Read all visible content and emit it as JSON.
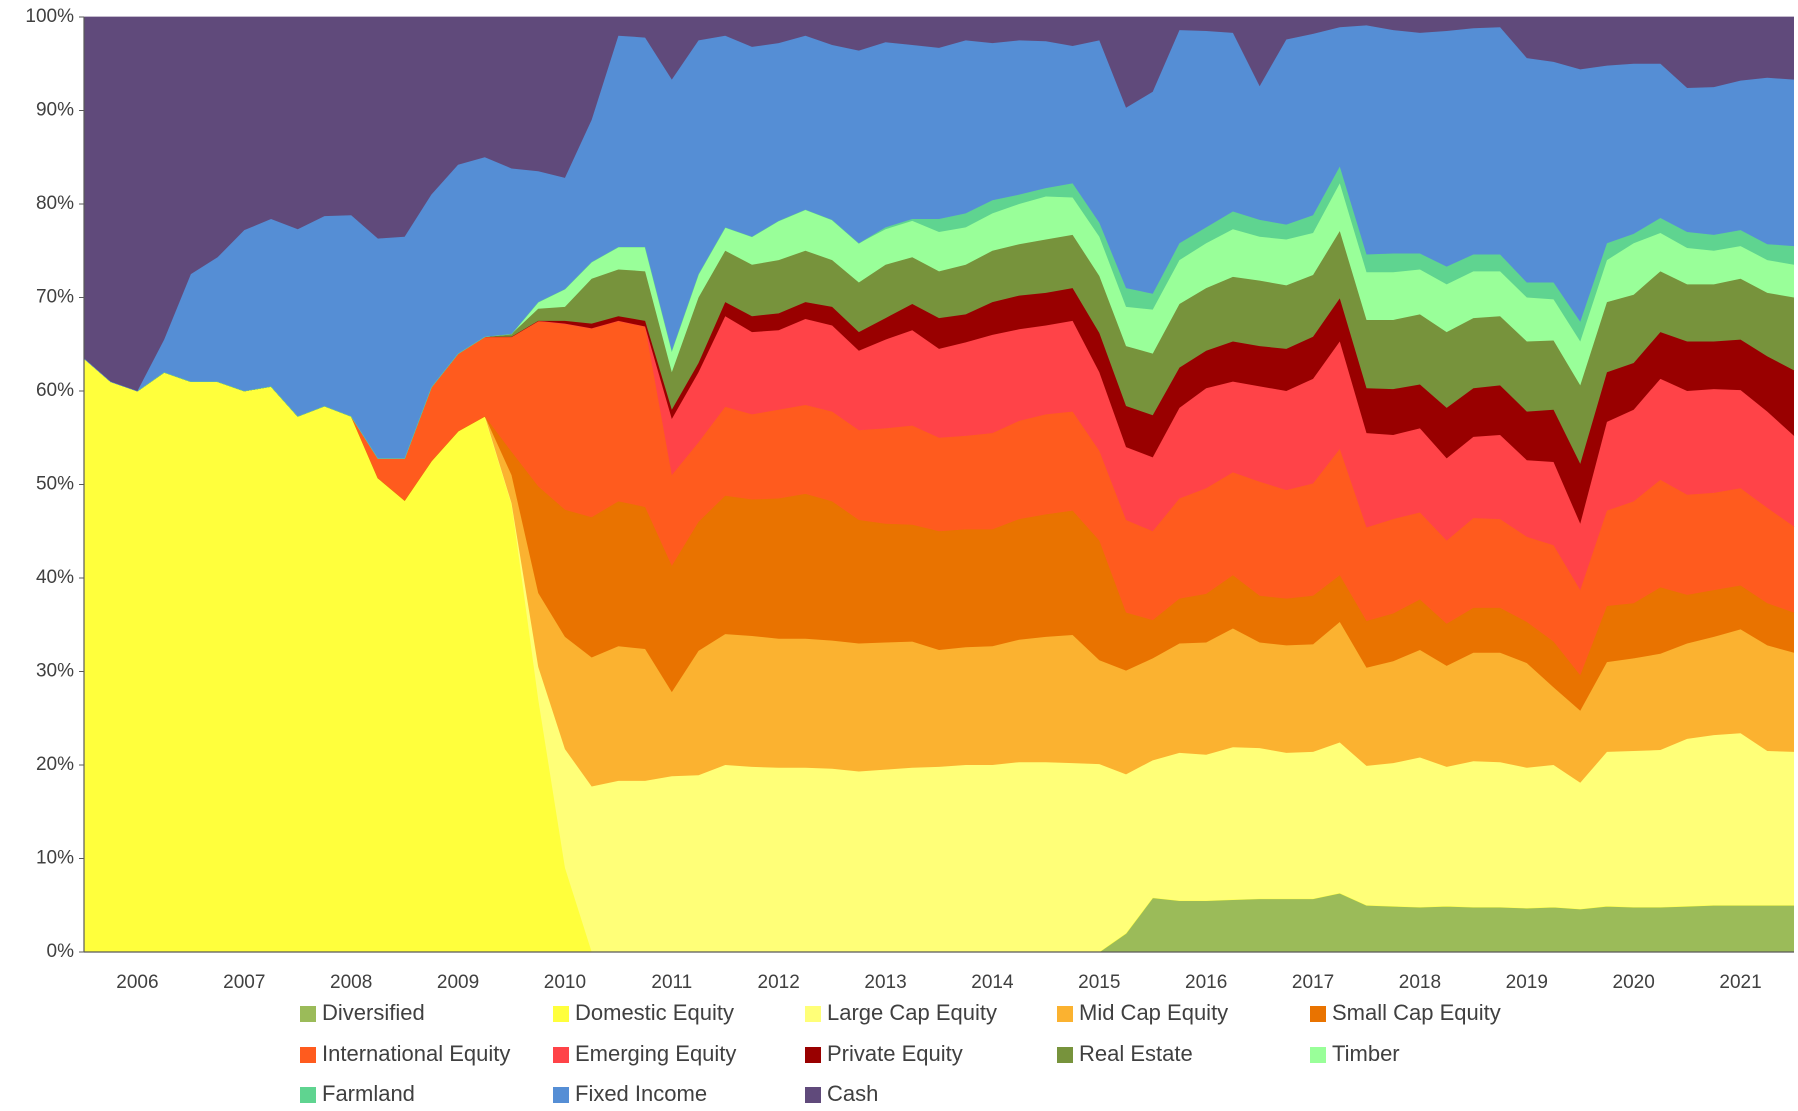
{
  "chart_data": {
    "type": "stacked_area",
    "categories": [
      null,
      null,
      "2006",
      null,
      null,
      null,
      "2007",
      null,
      null,
      null,
      "2008",
      null,
      null,
      null,
      "2009",
      null,
      null,
      null,
      "2010",
      null,
      null,
      null,
      "2011",
      null,
      null,
      null,
      "2012",
      null,
      null,
      null,
      "2013",
      null,
      null,
      null,
      "2014",
      null,
      null,
      null,
      "2015",
      null,
      null,
      null,
      "2016",
      null,
      null,
      null,
      "2017",
      null,
      null,
      null,
      "2018",
      null,
      null,
      null,
      "2019",
      null,
      null,
      null,
      "2020",
      null,
      null,
      null,
      "2021",
      null,
      null
    ],
    "ylim": [
      0,
      100
    ],
    "yticks": [
      {
        "value": 0,
        "label": "0%"
      },
      {
        "value": 10,
        "label": "10%"
      },
      {
        "value": 20,
        "label": "20%"
      },
      {
        "value": 30,
        "label": "30%"
      },
      {
        "value": 40,
        "label": "40%"
      },
      {
        "value": 50,
        "label": "50%"
      },
      {
        "value": 60,
        "label": "60%"
      },
      {
        "value": 70,
        "label": "70%"
      },
      {
        "value": 80,
        "label": "80%"
      },
      {
        "value": 90,
        "label": "90%"
      },
      {
        "value": 100,
        "label": "100%"
      }
    ],
    "grid": false,
    "legend": "bottom",
    "series": [
      {
        "name": "Diversified",
        "color": "#9bbb59",
        "values": [
          0,
          0,
          0,
          0,
          0,
          0,
          0,
          0,
          0,
          0,
          0,
          0,
          0,
          0,
          0,
          0,
          0,
          0,
          0,
          0,
          0,
          0,
          0,
          0,
          0,
          0,
          0,
          0,
          0,
          0,
          0,
          0,
          0,
          0,
          0,
          0,
          0,
          0,
          0,
          2,
          5.8,
          5.5,
          5.5,
          5.6,
          5.7,
          5.7,
          5.7,
          6.3,
          5,
          4.9,
          4.8,
          4.9,
          4.8,
          4.8,
          4.7,
          4.8,
          4.6,
          4.9,
          4.8,
          4.8,
          4.9,
          5,
          5,
          5,
          5
        ]
      },
      {
        "name": "Domestic Equity",
        "color": "#ffff3c",
        "values": [
          63.5,
          61,
          60,
          62,
          61,
          61,
          60,
          60.5,
          57.3,
          58.4,
          57.3,
          50.7,
          48.3,
          52.5,
          55.7,
          57.3,
          48,
          27,
          9,
          0,
          0,
          0,
          0,
          0,
          0,
          0,
          0,
          0,
          0,
          0,
          0,
          0,
          0,
          0,
          0,
          0,
          0,
          0,
          0,
          0,
          0,
          0,
          0,
          0,
          0,
          0,
          0,
          0,
          0,
          0,
          0,
          0,
          0,
          0,
          0,
          0,
          0,
          0,
          0,
          0,
          0,
          0,
          0,
          0,
          0
        ]
      },
      {
        "name": "Large Cap Equity",
        "color": "#ffff78",
        "values": [
          0,
          0,
          0,
          0,
          0,
          0,
          0,
          0,
          0,
          0,
          0,
          0,
          0,
          0,
          0,
          0,
          0,
          3.5,
          12.7,
          17.7,
          18.3,
          18.3,
          18.8,
          18.9,
          20,
          19.8,
          19.7,
          19.7,
          19.6,
          19.3,
          19.5,
          19.7,
          19.8,
          20,
          20,
          20.3,
          20.3,
          20.2,
          20.1,
          17,
          14.7,
          15.8,
          15.6,
          16.3,
          16.1,
          15.6,
          15.7,
          16.1,
          14.9,
          15.3,
          16,
          14.9,
          15.6,
          15.5,
          15,
          15.2,
          13.5,
          16.5,
          16.7,
          16.8,
          17.9,
          18.2,
          18.4,
          16.5,
          16.4
        ]
      },
      {
        "name": "Mid Cap Equity",
        "color": "#fbb230",
        "values": [
          0,
          0,
          0,
          0,
          0,
          0,
          0,
          0,
          0,
          0,
          0,
          0,
          0,
          0,
          0,
          0,
          3,
          7.9,
          12,
          13.8,
          14.4,
          14.1,
          9,
          13.3,
          14,
          14,
          13.8,
          13.8,
          13.7,
          13.7,
          13.6,
          13.5,
          12.5,
          12.6,
          12.7,
          13.1,
          13.4,
          13.7,
          11.1,
          11.1,
          10.9,
          11.7,
          12,
          12.7,
          11.3,
          11.5,
          11.5,
          12.9,
          10.5,
          10.9,
          11.5,
          10.8,
          11.6,
          11.7,
          11.2,
          8.3,
          7.7,
          9.6,
          9.9,
          10.3,
          10.2,
          10.5,
          11.1,
          11.3,
          10.6
        ]
      },
      {
        "name": "Small Cap Equity",
        "color": "#e97300",
        "values": [
          0,
          0,
          0,
          0,
          0,
          0,
          0,
          0,
          0,
          0,
          0,
          0,
          0,
          0,
          0,
          0,
          2.5,
          11.4,
          13.6,
          15,
          15.5,
          15.2,
          13.5,
          13.8,
          14.8,
          14.6,
          15,
          15.5,
          14.9,
          13.2,
          12.7,
          12.5,
          12.7,
          12.6,
          12.5,
          12.9,
          13.1,
          13.3,
          12.8,
          6.2,
          4.1,
          4.8,
          5.2,
          5.7,
          5,
          5,
          5.2,
          5,
          5,
          5.1,
          5.4,
          4.5,
          4.8,
          4.8,
          4.4,
          4.9,
          3.8,
          6,
          5.9,
          7.1,
          5.2,
          5,
          4.7,
          4.5,
          4.3
        ]
      },
      {
        "name": "International Equity",
        "color": "#ff5b1e",
        "values": [
          0,
          0,
          0,
          0,
          0,
          0,
          0,
          0,
          0,
          0,
          0,
          2.1,
          4.5,
          7.9,
          8.3,
          8.5,
          12.3,
          17.7,
          19.9,
          20.2,
          19.3,
          19.3,
          9.7,
          8.5,
          9.5,
          9.1,
          9.5,
          9.5,
          9.6,
          9.6,
          10.2,
          10.6,
          10,
          10,
          10.3,
          10.5,
          10.7,
          10.6,
          9.6,
          9.9,
          9.5,
          10.7,
          11.3,
          11,
          12.2,
          11.6,
          12,
          13.5,
          10,
          10.1,
          9.3,
          8.9,
          9.6,
          9.5,
          9.1,
          10.3,
          9.1,
          10.2,
          10.9,
          11.5,
          10.7,
          10.4,
          10.4,
          10.2,
          9.2
        ]
      },
      {
        "name": "Emerging Equity",
        "color": "#ff4348",
        "values": [
          0,
          0,
          0,
          0,
          0,
          0,
          0,
          0,
          0,
          0,
          0,
          0,
          0,
          0,
          0,
          0,
          0,
          0,
          0,
          0,
          0,
          0,
          6,
          7.5,
          9.7,
          8.8,
          8.5,
          9.2,
          9.2,
          8.5,
          9.5,
          10.2,
          9.5,
          10,
          10.5,
          9.8,
          9.5,
          9.7,
          8.4,
          7.8,
          7.9,
          9.7,
          10.7,
          9.7,
          10.2,
          10.6,
          11.2,
          11.5,
          10.1,
          9,
          9,
          8.8,
          8.7,
          9,
          8.2,
          8.9,
          7.1,
          9.5,
          9.8,
          10.8,
          11.1,
          11.1,
          10.5,
          10.3,
          9.7
        ]
      },
      {
        "name": "Private Equity",
        "color": "#990000",
        "values": [
          0,
          0,
          0,
          0,
          0,
          0,
          0,
          0,
          0,
          0,
          0,
          0,
          0,
          0,
          0,
          0,
          0,
          0,
          0.3,
          0.5,
          0.5,
          0.6,
          1,
          1,
          1.5,
          1.7,
          1.8,
          1.8,
          2,
          2,
          2.3,
          2.8,
          3.3,
          3,
          3.5,
          3.6,
          3.5,
          3.5,
          4.2,
          4.4,
          4.5,
          4.3,
          4,
          4.3,
          4.3,
          4.5,
          4.5,
          4.6,
          4.8,
          4.9,
          4.7,
          5.4,
          5.2,
          5.3,
          5.2,
          5.6,
          6.4,
          5.3,
          5,
          5,
          5.3,
          5.1,
          5.4,
          5.9,
          7
        ]
      },
      {
        "name": "Real Estate",
        "color": "#77933c",
        "values": [
          0,
          0,
          0,
          0,
          0,
          0,
          0,
          0,
          0,
          0,
          0,
          0,
          0,
          0,
          0,
          0,
          0.3,
          1.3,
          1.5,
          4.8,
          5,
          5.3,
          4,
          7,
          5.5,
          5.5,
          5.7,
          5.5,
          5,
          5.3,
          5.7,
          5,
          5,
          5.3,
          5.5,
          5.5,
          5.7,
          5.7,
          6.1,
          6.4,
          6.6,
          6.8,
          6.7,
          6.9,
          7,
          6.8,
          6.6,
          7.2,
          7.3,
          7.4,
          7.5,
          8.1,
          7.5,
          7.4,
          7.5,
          7.4,
          8.4,
          7.5,
          7.3,
          6.5,
          6.1,
          6.1,
          6.5,
          6.8,
          7.8
        ]
      },
      {
        "name": "Timber",
        "color": "#99ff99",
        "values": [
          0,
          0,
          0,
          0,
          0,
          0,
          0,
          0,
          0,
          0,
          0,
          0,
          0,
          0,
          0,
          0,
          0,
          0.7,
          1.9,
          1.8,
          2.4,
          2.6,
          2.3,
          2.5,
          2.5,
          3,
          4.2,
          4.4,
          4.3,
          4.2,
          3.8,
          3.9,
          4.2,
          4,
          4,
          4.3,
          4.6,
          4,
          4.2,
          4.2,
          4.7,
          4.7,
          4.8,
          5.1,
          4.7,
          4.9,
          4.5,
          5.1,
          5.1,
          5.1,
          4.8,
          5.1,
          5,
          4.8,
          4.7,
          4.4,
          4.7,
          4.5,
          5.5,
          4.1,
          3.9,
          3.6,
          3.5,
          3.5,
          3.5
        ]
      },
      {
        "name": "Farmland",
        "color": "#5fd490",
        "values": [
          0,
          0,
          0,
          0,
          0,
          0,
          0,
          0,
          0,
          0,
          0,
          0,
          0,
          0,
          0,
          0,
          0,
          0,
          0,
          0,
          0,
          0,
          0,
          0,
          0,
          0,
          0,
          0,
          0,
          0,
          0.2,
          0.2,
          1.4,
          1.5,
          1.4,
          1,
          0.9,
          1.5,
          1.5,
          2,
          1.7,
          1.8,
          1.7,
          1.9,
          1.8,
          1.6,
          1.9,
          1.8,
          1.9,
          2,
          1.7,
          1.9,
          1.8,
          1.8,
          1.6,
          1.8,
          2.1,
          1.8,
          1,
          1.6,
          1.7,
          1.7,
          1.7,
          1.7,
          2
        ]
      },
      {
        "name": "Fixed Income",
        "color": "#558ed5",
        "values": [
          0,
          0,
          0,
          3.5,
          11.5,
          13.3,
          17.2,
          17.9,
          20,
          20.3,
          21.5,
          23.5,
          23.7,
          20.6,
          20.2,
          19.2,
          17.7,
          14,
          11.9,
          15.2,
          22.6,
          22.4,
          29,
          25,
          20.5,
          20.3,
          19,
          18.6,
          18.7,
          20.6,
          19.8,
          18.6,
          18.3,
          18.5,
          16.8,
          16.5,
          15.7,
          14.7,
          19.5,
          19.3,
          21.6,
          22.8,
          21,
          19.1,
          14.3,
          19.8,
          19.4,
          14.9,
          24.5,
          23.9,
          23.6,
          25.2,
          24.2,
          24.3,
          24,
          23.6,
          27,
          19,
          18.2,
          16.5,
          15.4,
          15.8,
          16,
          17.8,
          17.8
        ]
      },
      {
        "name": "Cash",
        "color": "#604a7b",
        "values": [
          36.5,
          39,
          40,
          34.5,
          27.5,
          25.7,
          22.8,
          21.6,
          22.7,
          21.3,
          21.2,
          23.7,
          23.5,
          19,
          15.8,
          15,
          16.2,
          16.5,
          17.2,
          11,
          2,
          2.2,
          6.7,
          2.5,
          2,
          3.2,
          2.8,
          2,
          3,
          3.6,
          2.7,
          3,
          3.3,
          2.5,
          2.8,
          2.5,
          2.6,
          3.1,
          2.5,
          9.7,
          8,
          1.4,
          1.5,
          1.7,
          7.4,
          2.4,
          1.8,
          1.1,
          0.9,
          1.4,
          1.7,
          1.5,
          1.2,
          1.1,
          4.4,
          4.8,
          5.6,
          5.2,
          5,
          5,
          7.6,
          7.5,
          6.8,
          6.5,
          6.7
        ]
      }
    ]
  }
}
